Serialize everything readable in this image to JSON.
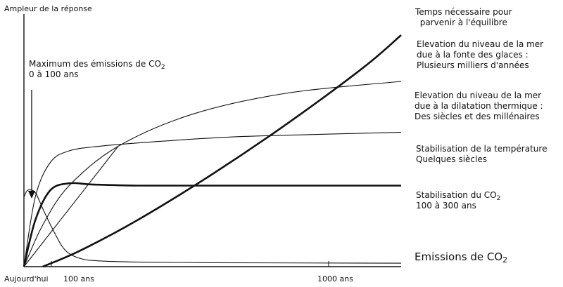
{
  "chart_data": {
    "type": "line",
    "ylabel": "Ampleur de la réponse",
    "legend_title": [
      "Temps nécessaire pour",
      "parvenir à l'équilibre"
    ],
    "x_ticks": [
      "Aujourd'hui",
      "100 ans",
      "1000 ans"
    ],
    "annotation": {
      "lines": [
        "Maximum des émissions de CO",
        "0 à 100 ans"
      ],
      "subscript": "2"
    },
    "series": [
      {
        "id": "ice",
        "name": [
          "Elevation du niveau de la mer",
          "due à la fonte des glaces :",
          "Plusieurs milliers d'années"
        ],
        "weight": "bold",
        "x": [
          0.05,
          0.15,
          0.3,
          0.5,
          0.7,
          0.9,
          1.0
        ],
        "y": [
          0.0,
          0.07,
          0.2,
          0.4,
          0.62,
          0.86,
          1.0
        ]
      },
      {
        "id": "thermal",
        "name": [
          "Elevation du niveau de la mer",
          "due à la dilatation thermique :",
          "Des siècles et des millénaires"
        ],
        "weight": "thin",
        "x": [
          0.0,
          0.05,
          0.12,
          0.25,
          0.45,
          0.7,
          1.0
        ],
        "y": [
          0.0,
          0.18,
          0.35,
          0.52,
          0.66,
          0.75,
          0.8
        ]
      },
      {
        "id": "temperature",
        "name": [
          "Stabilisation de la température",
          "Quelques siècles"
        ],
        "weight": "thin",
        "x": [
          0.0,
          0.03,
          0.07,
          0.12,
          0.2,
          0.35,
          0.55,
          0.75,
          1.0
        ],
        "y": [
          0.0,
          0.3,
          0.45,
          0.5,
          0.52,
          0.54,
          0.56,
          0.57,
          0.58
        ]
      },
      {
        "id": "co2",
        "name": [
          "Stabilisation du CO",
          "100 à 300 ans"
        ],
        "subscript": "2",
        "weight": "bold",
        "x": [
          0.0,
          0.03,
          0.07,
          0.12,
          0.18,
          0.3,
          0.5,
          0.75,
          1.0
        ],
        "y": [
          0.0,
          0.2,
          0.33,
          0.36,
          0.355,
          0.35,
          0.35,
          0.35,
          0.35
        ]
      },
      {
        "id": "straight",
        "name": [],
        "weight": "thin",
        "x": [
          0.0,
          0.25
        ],
        "y": [
          0.0,
          0.52
        ]
      },
      {
        "id": "emissions",
        "name": [
          "Emissions de CO"
        ],
        "subscript": "2",
        "weight": "thin",
        "x": [
          0.0,
          0.01,
          0.03,
          0.05,
          0.08,
          0.11,
          0.15,
          0.2,
          0.3,
          0.5,
          1.0
        ],
        "y": [
          0.3,
          0.33,
          0.32,
          0.25,
          0.15,
          0.07,
          0.035,
          0.025,
          0.02,
          0.017,
          0.015
        ]
      }
    ]
  }
}
